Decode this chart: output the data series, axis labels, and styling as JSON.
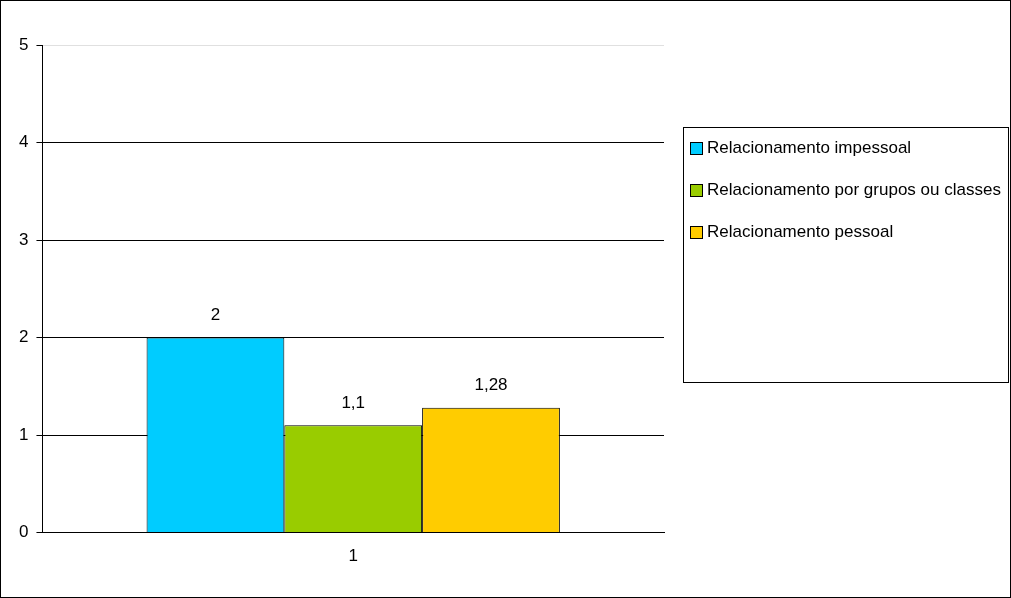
{
  "chart_data": {
    "type": "bar",
    "categories": [
      "1"
    ],
    "series": [
      {
        "name": "Relacionamento impessoal",
        "color": "#00ccff",
        "values": [
          2
        ],
        "value_labels": [
          "2"
        ]
      },
      {
        "name": "Relacionamento por grupos ou classes",
        "color": "#99cc00",
        "values": [
          1.1
        ],
        "value_labels": [
          "1,1"
        ]
      },
      {
        "name": "Relacionamento pessoal",
        "color": "#ffcc00",
        "values": [
          1.28
        ],
        "value_labels": [
          "1,28"
        ]
      }
    ],
    "ylim": [
      0,
      5
    ],
    "yticks": [
      0,
      1,
      2,
      3,
      4,
      5
    ],
    "grid": "y",
    "legend": "right"
  }
}
